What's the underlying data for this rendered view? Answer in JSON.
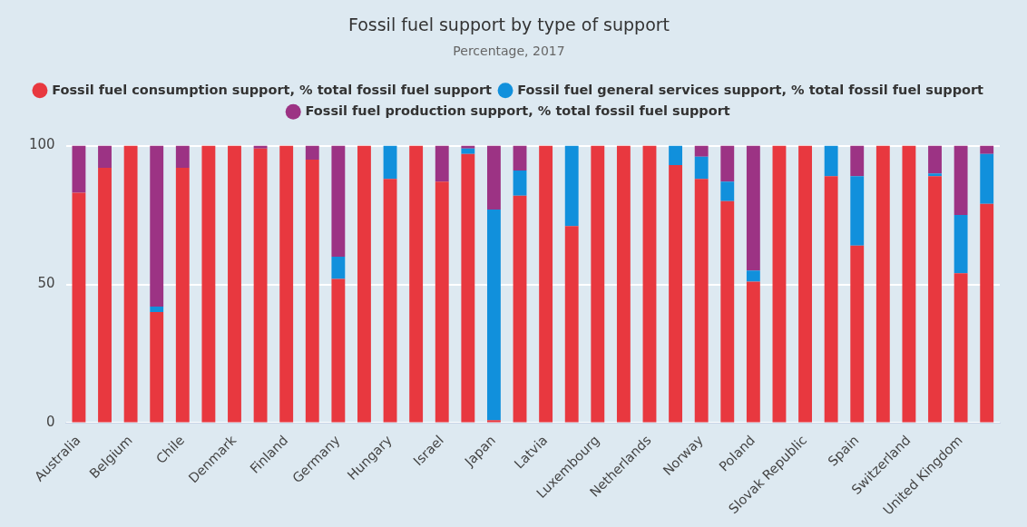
{
  "chart_data": {
    "type": "bar",
    "title": "Fossil fuel support by type of support",
    "subtitle": "Percentage, 2017",
    "categories": [
      "Australia",
      null,
      "Belgium",
      null,
      "Chile",
      null,
      "Denmark",
      null,
      "Finland",
      null,
      "Germany",
      null,
      "Hungary",
      null,
      "Israel",
      null,
      "Japan",
      null,
      "Latvia",
      null,
      "Luxembourg",
      null,
      "Netherlands",
      null,
      "Norway",
      null,
      "Poland",
      null,
      "Slovak Republic",
      null,
      "Spain",
      null,
      "Switzerland",
      null,
      "United Kingdom",
      null
    ],
    "series": [
      {
        "name": "Fossil fuel consumption support, % total fossil fuel support",
        "color": "#e8383f",
        "values": [
          83,
          92,
          100,
          40,
          92,
          100,
          100,
          99,
          100,
          95,
          52,
          100,
          88,
          100,
          87,
          97,
          1,
          82,
          100,
          71,
          100,
          100,
          100,
          93,
          88,
          80,
          51,
          100,
          100,
          89,
          64,
          100,
          100,
          89,
          54,
          79
        ]
      },
      {
        "name": "Fossil fuel general services support, % total fossil fuel support",
        "color": "#1190dc",
        "values": [
          0,
          0,
          0,
          2,
          0,
          0,
          0,
          0,
          0,
          0,
          8,
          0,
          12,
          0,
          0,
          2,
          76,
          9,
          0,
          29,
          0,
          0,
          0,
          7,
          8,
          7,
          4,
          0,
          0,
          11,
          25,
          0,
          0,
          1,
          21,
          18
        ]
      },
      {
        "name": "Fossil fuel production support, % total fossil fuel support",
        "color": "#9c3384",
        "values": [
          17,
          8,
          0,
          58,
          8,
          0,
          0,
          1,
          0,
          5,
          40,
          0,
          0,
          0,
          13,
          1,
          23,
          9,
          0,
          0,
          0,
          0,
          0,
          0,
          4,
          13,
          45,
          0,
          0,
          0,
          11,
          0,
          0,
          10,
          25,
          3
        ]
      }
    ],
    "stacked": true,
    "ylim": [
      0,
      100
    ],
    "yticks": [
      0,
      50,
      100
    ],
    "grid": "y",
    "legend": "top"
  }
}
